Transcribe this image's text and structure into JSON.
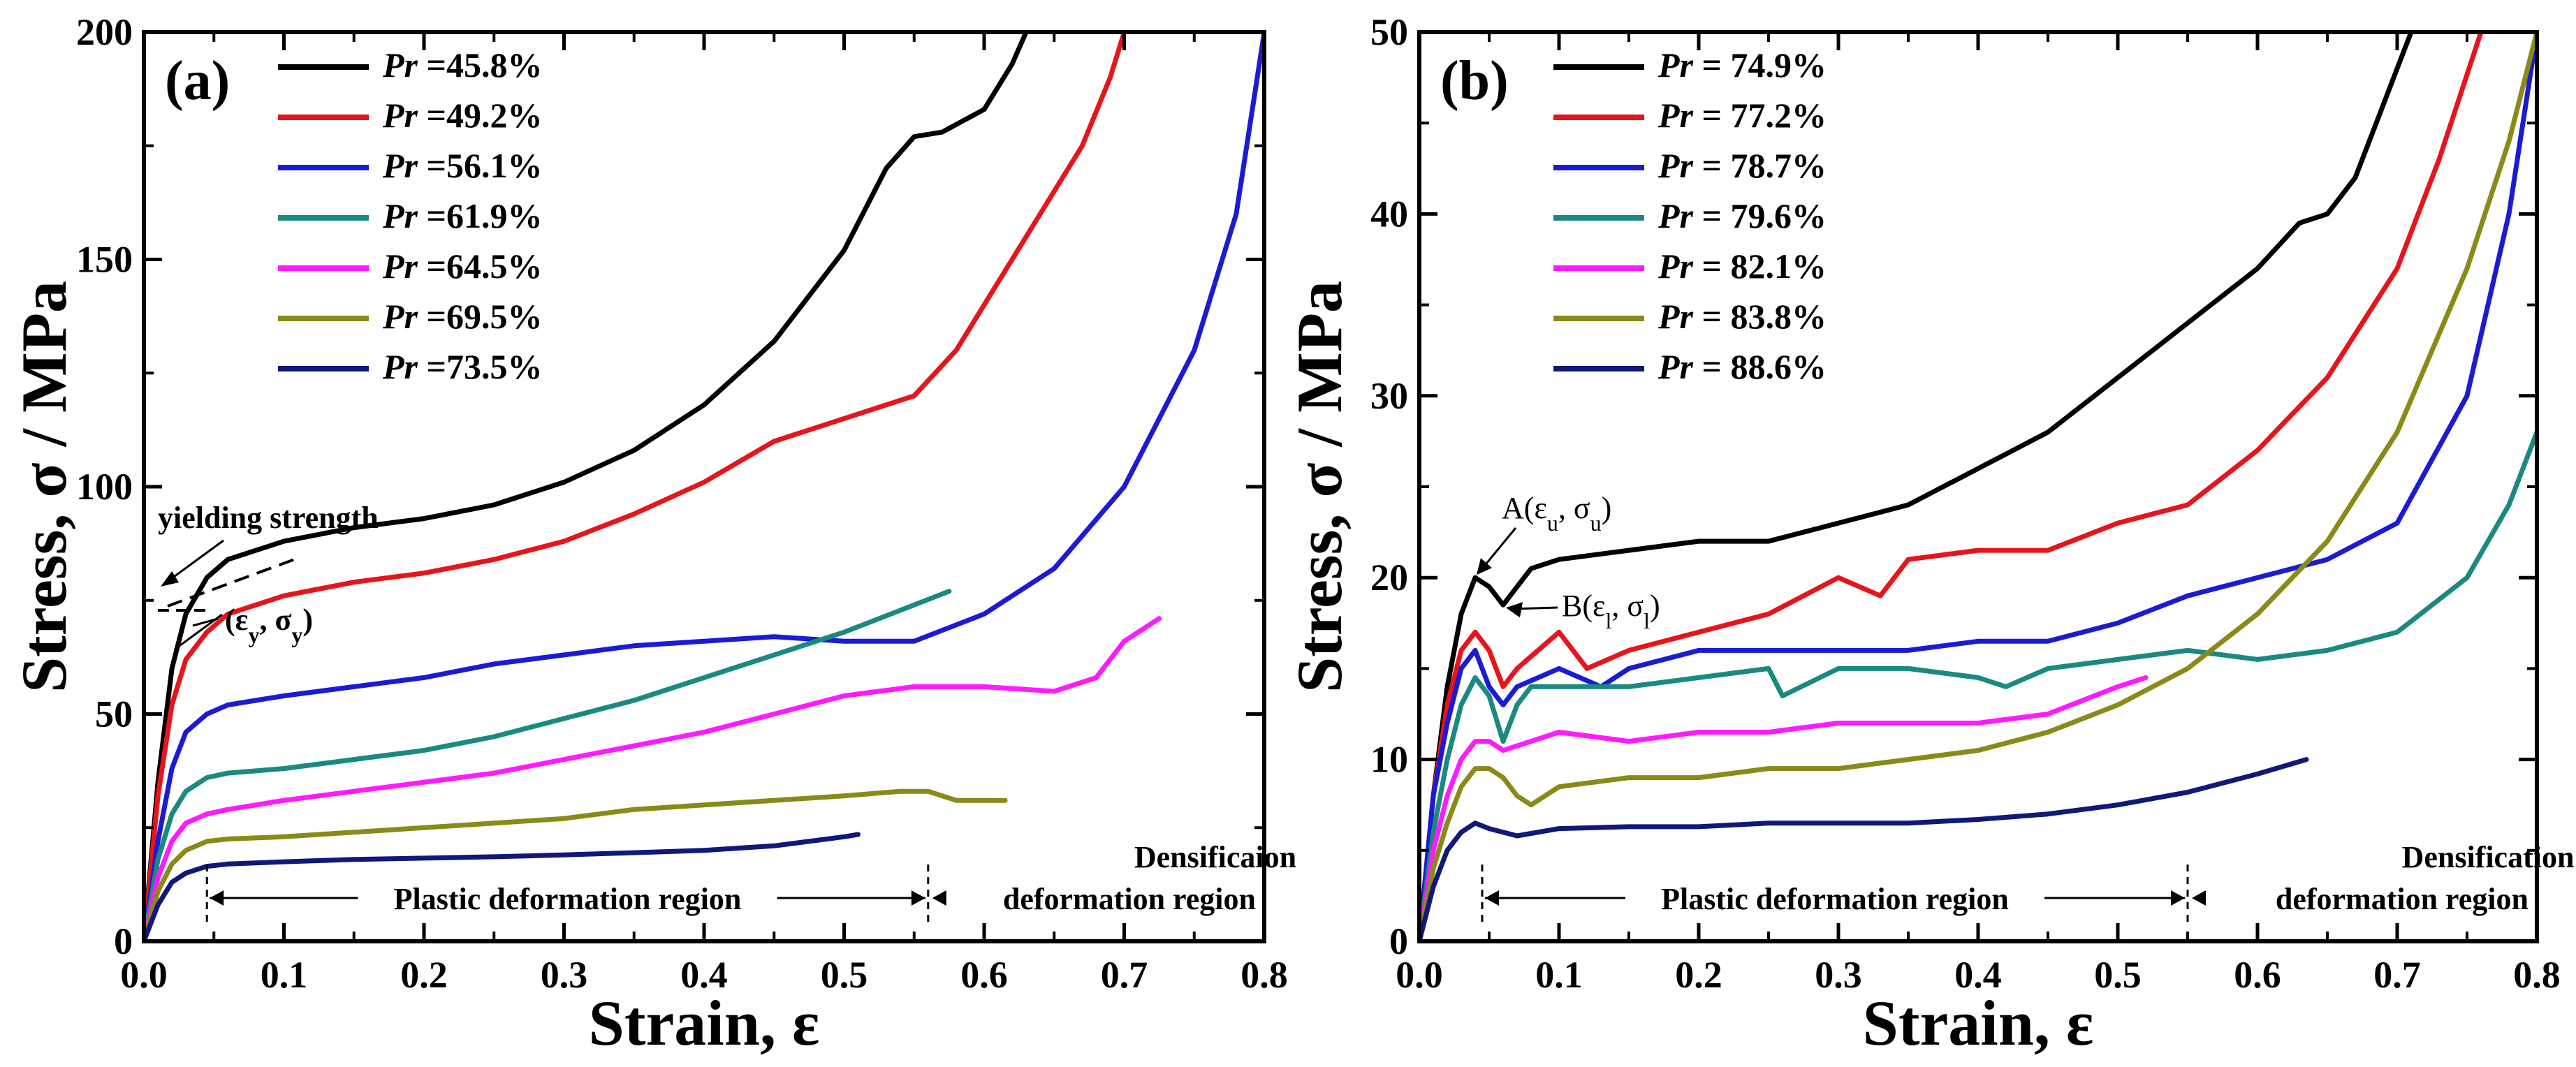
{
  "chart_data": [
    {
      "type": "line",
      "panel_label": "(a)",
      "xlabel": "Strain, ε",
      "ylabel": "Stress, σ / MPa",
      "xlim": [
        0.0,
        0.8
      ],
      "ylim": [
        0,
        200
      ],
      "x_ticks": [
        "0.0",
        "0.1",
        "0.2",
        "0.3",
        "0.4",
        "0.5",
        "0.6",
        "0.7",
        "0.8"
      ],
      "y_ticks": [
        "0",
        "50",
        "100",
        "150",
        "200"
      ],
      "legend_position": "top-left",
      "series": [
        {
          "name": "Pr =45.8%",
          "prefix": "Pr",
          "suffix": " =45.8%",
          "color": "#000000",
          "x": [
            0,
            0.01,
            0.02,
            0.03,
            0.045,
            0.06,
            0.1,
            0.15,
            0.2,
            0.25,
            0.3,
            0.35,
            0.4,
            0.45,
            0.5,
            0.53,
            0.55,
            0.57,
            0.6,
            0.62,
            0.63
          ],
          "y": [
            0,
            35,
            60,
            72,
            80,
            84,
            88,
            91,
            93,
            96,
            101,
            108,
            118,
            132,
            152,
            170,
            177,
            178,
            183,
            193,
            200
          ]
        },
        {
          "name": "Pr =49.2%",
          "prefix": "Pr",
          "suffix": " =49.2%",
          "color": "#e8141b",
          "x": [
            0,
            0.01,
            0.02,
            0.03,
            0.045,
            0.06,
            0.1,
            0.15,
            0.2,
            0.25,
            0.3,
            0.35,
            0.4,
            0.45,
            0.5,
            0.55,
            0.58,
            0.61,
            0.64,
            0.67,
            0.69,
            0.7
          ],
          "y": [
            0,
            32,
            52,
            62,
            68,
            72,
            76,
            79,
            81,
            84,
            88,
            94,
            101,
            110,
            115,
            120,
            130,
            145,
            160,
            175,
            190,
            200
          ]
        },
        {
          "name": "Pr =56.1%",
          "prefix": "Pr",
          "suffix": " =56.1%",
          "color": "#1b1bd6",
          "x": [
            0,
            0.01,
            0.02,
            0.03,
            0.045,
            0.06,
            0.1,
            0.15,
            0.2,
            0.25,
            0.3,
            0.35,
            0.4,
            0.45,
            0.5,
            0.55,
            0.6,
            0.65,
            0.7,
            0.75,
            0.78,
            0.8
          ],
          "y": [
            0,
            22,
            38,
            46,
            50,
            52,
            54,
            56,
            58,
            61,
            63,
            65,
            66,
            67,
            66,
            66,
            72,
            82,
            100,
            130,
            160,
            200
          ]
        },
        {
          "name": "Pr =61.9%",
          "prefix": "Pr",
          "suffix": " =61.9%",
          "color": "#1a8a80",
          "x": [
            0,
            0.01,
            0.02,
            0.03,
            0.045,
            0.06,
            0.1,
            0.15,
            0.2,
            0.25,
            0.3,
            0.35,
            0.4,
            0.45,
            0.5,
            0.55,
            0.575
          ],
          "y": [
            0,
            18,
            28,
            33,
            36,
            37,
            38,
            40,
            42,
            45,
            49,
            53,
            58,
            63,
            68,
            74,
            77
          ]
        },
        {
          "name": "Pr =64.5%",
          "prefix": "Pr",
          "suffix": " =64.5%",
          "color": "#ff1aff",
          "x": [
            0,
            0.01,
            0.02,
            0.03,
            0.045,
            0.06,
            0.1,
            0.15,
            0.2,
            0.25,
            0.3,
            0.35,
            0.4,
            0.45,
            0.5,
            0.55,
            0.6,
            0.65,
            0.68,
            0.7,
            0.725
          ],
          "y": [
            0,
            14,
            22,
            26,
            28,
            29,
            31,
            33,
            35,
            37,
            40,
            43,
            46,
            50,
            54,
            56,
            56,
            55,
            58,
            66,
            71
          ]
        },
        {
          "name": "Pr =69.5%",
          "prefix": "Pr",
          "suffix": " =69.5%",
          "color": "#8a8a18",
          "x": [
            0,
            0.01,
            0.02,
            0.03,
            0.045,
            0.06,
            0.1,
            0.15,
            0.2,
            0.25,
            0.3,
            0.35,
            0.4,
            0.45,
            0.5,
            0.54,
            0.56,
            0.58,
            0.615
          ],
          "y": [
            0,
            11,
            17,
            20,
            22,
            22.5,
            23,
            24,
            25,
            26,
            27,
            29,
            30,
            31,
            32,
            33,
            33,
            31,
            31
          ]
        },
        {
          "name": "Pr =73.5%",
          "prefix": "Pr",
          "suffix": " =73.5%",
          "color": "#10187a",
          "x": [
            0,
            0.01,
            0.02,
            0.03,
            0.045,
            0.06,
            0.1,
            0.15,
            0.2,
            0.25,
            0.3,
            0.35,
            0.4,
            0.45,
            0.5,
            0.51
          ],
          "y": [
            0,
            8,
            13,
            15,
            16.5,
            17,
            17.5,
            18,
            18.3,
            18.6,
            19,
            19.5,
            20,
            21,
            23,
            23.5
          ]
        }
      ],
      "annotations": {
        "yield_label": "yielding strength",
        "yield_point_eps": "ε",
        "yield_point_eps_sub": "y",
        "yield_point_sig": "σ",
        "yield_point_sig_sub": "y",
        "plastic_region": "Plastic deformation region",
        "densification_line1": "Densificaion",
        "densification_line2": "deformation region",
        "plastic_start_x": 0.045,
        "boundary_x": 0.56
      }
    },
    {
      "type": "line",
      "panel_label": "(b)",
      "xlabel": "Strain, ε",
      "ylabel": "Stress, σ / MPa",
      "xlim": [
        0.0,
        0.8
      ],
      "ylim": [
        0,
        50
      ],
      "x_ticks": [
        "0.0",
        "0.1",
        "0.2",
        "0.3",
        "0.4",
        "0.5",
        "0.6",
        "0.7",
        "0.8"
      ],
      "y_ticks": [
        "0",
        "10",
        "20",
        "30",
        "40",
        "50"
      ],
      "legend_position": "top-left",
      "series": [
        {
          "name": "Pr = 74.9%",
          "prefix": "Pr",
          "suffix": " = 74.9%",
          "color": "#000000",
          "x": [
            0,
            0.01,
            0.02,
            0.03,
            0.04,
            0.05,
            0.06,
            0.08,
            0.1,
            0.15,
            0.2,
            0.25,
            0.3,
            0.35,
            0.4,
            0.45,
            0.5,
            0.55,
            0.6,
            0.63,
            0.65,
            0.67,
            0.69,
            0.71
          ],
          "y": [
            0,
            8,
            14,
            18,
            20,
            19.5,
            18.5,
            20.5,
            21,
            21.5,
            22,
            22,
            23,
            24,
            26,
            28,
            31,
            34,
            37,
            39.5,
            40,
            42,
            46,
            50
          ]
        },
        {
          "name": "Pr = 77.2%",
          "prefix": "Pr",
          "suffix": " = 77.2%",
          "color": "#e8141b",
          "x": [
            0,
            0.01,
            0.02,
            0.03,
            0.04,
            0.05,
            0.06,
            0.07,
            0.1,
            0.12,
            0.15,
            0.2,
            0.25,
            0.3,
            0.33,
            0.35,
            0.4,
            0.45,
            0.5,
            0.55,
            0.6,
            0.65,
            0.7,
            0.73,
            0.76
          ],
          "y": [
            0,
            8,
            13,
            16,
            17,
            16,
            14,
            15,
            17,
            15,
            16,
            17,
            18,
            20,
            19,
            21,
            21.5,
            21.5,
            23,
            24,
            27,
            31,
            37,
            43,
            50
          ]
        },
        {
          "name": "Pr = 78.7%",
          "prefix": "Pr",
          "suffix": " = 78.7%",
          "color": "#1b1bd6",
          "x": [
            0,
            0.01,
            0.02,
            0.03,
            0.04,
            0.05,
            0.06,
            0.07,
            0.1,
            0.13,
            0.15,
            0.2,
            0.25,
            0.3,
            0.35,
            0.4,
            0.45,
            0.5,
            0.55,
            0.6,
            0.65,
            0.7,
            0.75,
            0.78,
            0.8
          ],
          "y": [
            0,
            8,
            12,
            15,
            16,
            14,
            13,
            14,
            15,
            14,
            15,
            16,
            16,
            16,
            16,
            16.5,
            16.5,
            17.5,
            19,
            20,
            21,
            23,
            30,
            40,
            50
          ]
        },
        {
          "name": "Pr = 79.6%",
          "prefix": "Pr",
          "suffix": " = 79.6%",
          "color": "#1a8a80",
          "x": [
            0,
            0.01,
            0.02,
            0.03,
            0.04,
            0.05,
            0.06,
            0.07,
            0.08,
            0.1,
            0.15,
            0.2,
            0.25,
            0.26,
            0.3,
            0.35,
            0.4,
            0.42,
            0.45,
            0.5,
            0.55,
            0.6,
            0.65,
            0.7,
            0.75,
            0.78,
            0.8
          ],
          "y": [
            0,
            6,
            10,
            13,
            14.5,
            13.5,
            11,
            13,
            14,
            14,
            14,
            14.5,
            15,
            13.5,
            15,
            15,
            14.5,
            14,
            15,
            15.5,
            16,
            15.5,
            16,
            17,
            20,
            24,
            28
          ]
        },
        {
          "name": "Pr = 82.1%",
          "prefix": "Pr",
          "suffix": " = 82.1%",
          "color": "#ff1aff",
          "x": [
            0,
            0.01,
            0.02,
            0.03,
            0.04,
            0.05,
            0.06,
            0.08,
            0.1,
            0.15,
            0.2,
            0.25,
            0.3,
            0.35,
            0.4,
            0.45,
            0.5,
            0.52
          ],
          "y": [
            0,
            5,
            8,
            10,
            11,
            11,
            10.5,
            11,
            11.5,
            11,
            11.5,
            11.5,
            12,
            12,
            12,
            12.5,
            14,
            14.5
          ]
        },
        {
          "name": "Pr = 83.8%",
          "prefix": "Pr",
          "suffix": " = 83.8%",
          "color": "#8a8a18",
          "x": [
            0,
            0.01,
            0.02,
            0.03,
            0.04,
            0.05,
            0.06,
            0.07,
            0.08,
            0.1,
            0.15,
            0.2,
            0.25,
            0.3,
            0.35,
            0.4,
            0.45,
            0.5,
            0.55,
            0.6,
            0.65,
            0.7,
            0.75,
            0.78,
            0.8
          ],
          "y": [
            0,
            4,
            6.5,
            8.5,
            9.5,
            9.5,
            9,
            8,
            7.5,
            8.5,
            9,
            9,
            9.5,
            9.5,
            10,
            10.5,
            11.5,
            13,
            15,
            18,
            22,
            28,
            37,
            44,
            50
          ]
        },
        {
          "name": "Pr = 88.6%",
          "prefix": "Pr",
          "suffix": " = 88.6%",
          "color": "#10187a",
          "x": [
            0,
            0.01,
            0.02,
            0.03,
            0.04,
            0.05,
            0.07,
            0.1,
            0.15,
            0.2,
            0.25,
            0.3,
            0.35,
            0.4,
            0.45,
            0.5,
            0.55,
            0.6,
            0.635
          ],
          "y": [
            0,
            3,
            5,
            6,
            6.5,
            6.2,
            5.8,
            6.2,
            6.3,
            6.3,
            6.5,
            6.5,
            6.5,
            6.7,
            7,
            7.5,
            8.2,
            9.2,
            10
          ]
        }
      ],
      "annotations": {
        "point_a_label": "A",
        "point_a_eps": "ε",
        "point_a_eps_sub": "u",
        "point_a_sig": "σ",
        "point_a_sig_sub": "u",
        "point_b_label": "B",
        "point_b_eps": "ε",
        "point_b_eps_sub": "l",
        "point_b_sig": "σ",
        "point_b_sig_sub": "l",
        "plastic_region": "Plastic deformation region",
        "densification_line1": "Densification",
        "densification_line2": "deformation region",
        "plastic_start_x": 0.045,
        "boundary_x": 0.55
      }
    }
  ]
}
